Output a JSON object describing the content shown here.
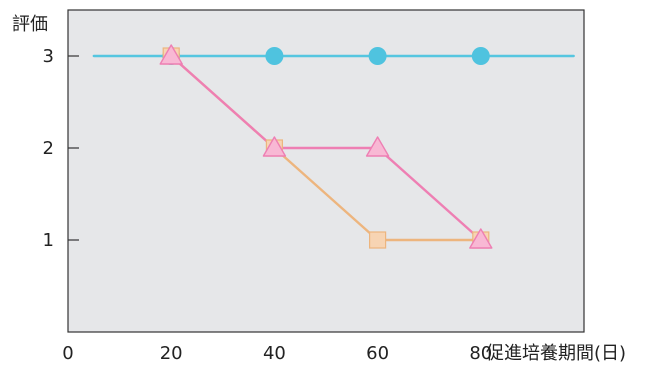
{
  "chart_data": {
    "type": "line",
    "ylabel": "評価",
    "xlabel": "促進培養期間(日)",
    "xlim": [
      0,
      100
    ],
    "ylim": [
      0,
      3.5
    ],
    "x_ticks": [
      0,
      20,
      40,
      60,
      80
    ],
    "y_ticks": [
      1,
      2,
      3
    ],
    "grid": false,
    "background_color": "#e6e7e9",
    "series": [
      {
        "marker": "circle",
        "color": "#55c6e0",
        "marker_color": "#4fc3df",
        "line_x": [
          5,
          98
        ],
        "line_y": [
          3,
          3
        ],
        "x": [
          20,
          40,
          60,
          80
        ],
        "y": [
          3,
          3,
          3,
          3
        ]
      },
      {
        "marker": "square",
        "color": "#edb57e",
        "marker_color": "#f7d4b3",
        "x": [
          20,
          40,
          60,
          80
        ],
        "y": [
          3,
          2,
          1,
          1
        ]
      },
      {
        "marker": "triangle",
        "color": "#ee7fb3",
        "marker_color": "#f8b8d4",
        "x": [
          20,
          40,
          60,
          80
        ],
        "y": [
          3,
          2,
          2,
          1
        ]
      }
    ]
  }
}
